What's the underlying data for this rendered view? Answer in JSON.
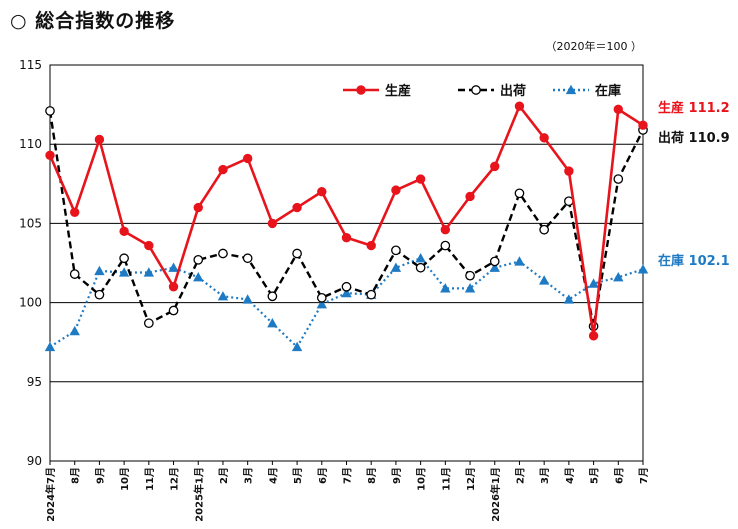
{
  "title": "○ 総合指数の推移",
  "unit_note": "（2020年＝100 ）",
  "chart_data": {
    "type": "line",
    "x": [
      "2024年7月",
      "8月",
      "9月",
      "10月",
      "11月",
      "12月",
      "2025年1月",
      "2月",
      "3月",
      "4月",
      "5月",
      "6月",
      "7月",
      "8月",
      "9月",
      "10月",
      "11月",
      "12月",
      "2026年1月",
      "2月",
      "3月",
      "4月",
      "5月",
      "6月",
      "7月"
    ],
    "series": [
      {
        "name": "生産",
        "color": "#e8141c",
        "style": "solid",
        "marker": "filled-circle",
        "values": [
          109.3,
          105.7,
          110.3,
          104.5,
          103.6,
          101.0,
          106.0,
          108.4,
          109.1,
          105.0,
          106.0,
          107.0,
          104.1,
          103.6,
          107.1,
          107.8,
          104.6,
          106.7,
          108.6,
          112.4,
          110.4,
          108.3,
          97.9,
          112.2,
          111.2
        ]
      },
      {
        "name": "出荷",
        "color": "#000000",
        "style": "dashed",
        "marker": "open-circle",
        "values": [
          112.1,
          101.8,
          100.5,
          102.8,
          98.7,
          99.5,
          102.7,
          103.1,
          102.8,
          100.4,
          103.1,
          100.3,
          101.0,
          100.5,
          103.3,
          102.2,
          103.6,
          101.7,
          102.6,
          106.9,
          104.6,
          106.4,
          98.5,
          107.8,
          110.9
        ]
      },
      {
        "name": "在庫",
        "color": "#1f7ac4",
        "style": "dotted",
        "marker": "filled-triangle",
        "values": [
          97.2,
          98.2,
          102.0,
          101.9,
          101.9,
          102.2,
          101.6,
          100.4,
          100.2,
          98.7,
          97.2,
          99.9,
          100.6,
          100.5,
          102.2,
          102.8,
          100.9,
          100.9,
          102.2,
          102.6,
          101.4,
          100.2,
          101.2,
          101.6,
          102.1
        ]
      }
    ],
    "ylim": [
      90,
      115
    ],
    "yticks": [
      90,
      95,
      100,
      105,
      110,
      115
    ],
    "grid": "horizontal",
    "legend": "top-right",
    "end_labels": [
      {
        "series": "生産",
        "text": "生産 111.2",
        "color": "#e8141c"
      },
      {
        "series": "出荷",
        "text": "出荷 110.9",
        "color": "#111111"
      },
      {
        "series": "在庫",
        "text": "在庫 102.1",
        "color": "#1f7ac4"
      }
    ]
  }
}
